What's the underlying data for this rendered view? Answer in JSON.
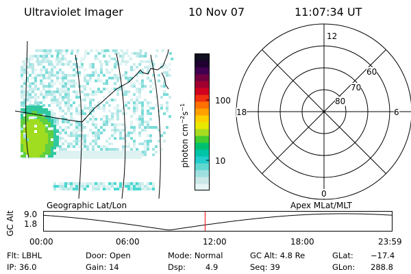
{
  "header": {
    "title": "Ultraviolet Imager",
    "date": "10 Nov 07",
    "time": "11:07:34 UT"
  },
  "colorbar": {
    "label": "photon cm",
    "label_exp1": "−2",
    "label_s": "s",
    "label_exp2": "−1",
    "ticks": [
      "100",
      "10"
    ],
    "colors": [
      "#e6f5f5",
      "#cce8e8",
      "#9ee0e0",
      "#60d8d0",
      "#22cccc",
      "#00c4a8",
      "#00c070",
      "#44cc30",
      "#a8dc20",
      "#e8e800",
      "#ffd000",
      "#ffa000",
      "#ff7000",
      "#f03010",
      "#d00020",
      "#a00030",
      "#700040",
      "#400050",
      "#200030",
      "#101020"
    ]
  },
  "polar": {
    "mlt_labels": {
      "top": "12",
      "bottom": "0",
      "left": "18",
      "right": "6"
    },
    "lat_labels": [
      "60",
      "70",
      "80"
    ]
  },
  "altitude_plot": {
    "ylabel": "GC Alt",
    "yticks": [
      "9.0",
      "1.8"
    ],
    "left_title": "Geographic Lat/Lon",
    "right_title": "Apex  MLat/MLT",
    "xticks": [
      "00:00",
      "06:00",
      "12:00",
      "18:00",
      "23:59"
    ],
    "current_time_hours": 11.126
  },
  "status": {
    "flt_label": "Flt: LBHL",
    "ip_label": "IP: 36.0",
    "door_label": "Door: Open",
    "gain_label": "Gain: 14",
    "mode_label": "Mode: Normal",
    "dsp_label": "Dsp:",
    "dsp_value": "4.9",
    "gcalt_label": "GC Alt: 4.8 Re",
    "seq_label": "Seq: 39",
    "glat_label": "GLat:",
    "glat_value": "−17.4",
    "glon_label": "GLon:",
    "glon_value": "288.8"
  }
}
